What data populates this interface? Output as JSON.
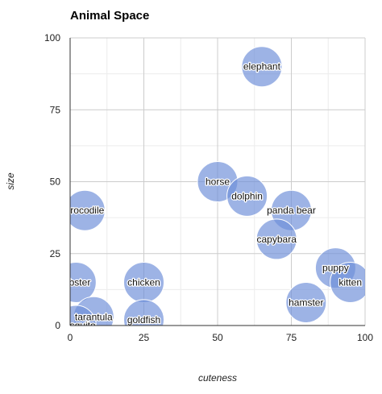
{
  "chart_data": {
    "type": "scatter",
    "title": "Animal Space",
    "xlabel": "cuteness",
    "ylabel": "size",
    "xlim": [
      0,
      100
    ],
    "ylim": [
      0,
      100
    ],
    "x_ticks": [
      0,
      25,
      50,
      75,
      100
    ],
    "y_ticks": [
      0,
      25,
      50,
      75,
      100
    ],
    "grid": true,
    "bubble_color": "#6f8fd8",
    "points": [
      {
        "label": "elephant",
        "x": 65,
        "y": 90
      },
      {
        "label": "horse",
        "x": 50,
        "y": 50
      },
      {
        "label": "dolphin",
        "x": 60,
        "y": 45
      },
      {
        "label": "panda bear",
        "x": 75,
        "y": 40
      },
      {
        "label": "capybara",
        "x": 70,
        "y": 30
      },
      {
        "label": "crocodile",
        "x": 5,
        "y": 40
      },
      {
        "label": "lobster",
        "x": 2,
        "y": 15
      },
      {
        "label": "chicken",
        "x": 25,
        "y": 15
      },
      {
        "label": "puppy",
        "x": 90,
        "y": 20
      },
      {
        "label": "kitten",
        "x": 95,
        "y": 15
      },
      {
        "label": "hamster",
        "x": 80,
        "y": 8
      },
      {
        "label": "tarantula",
        "x": 8,
        "y": 3
      },
      {
        "label": "goldfish",
        "x": 25,
        "y": 2
      },
      {
        "label": "mosquito",
        "x": 2,
        "y": 0
      }
    ]
  }
}
